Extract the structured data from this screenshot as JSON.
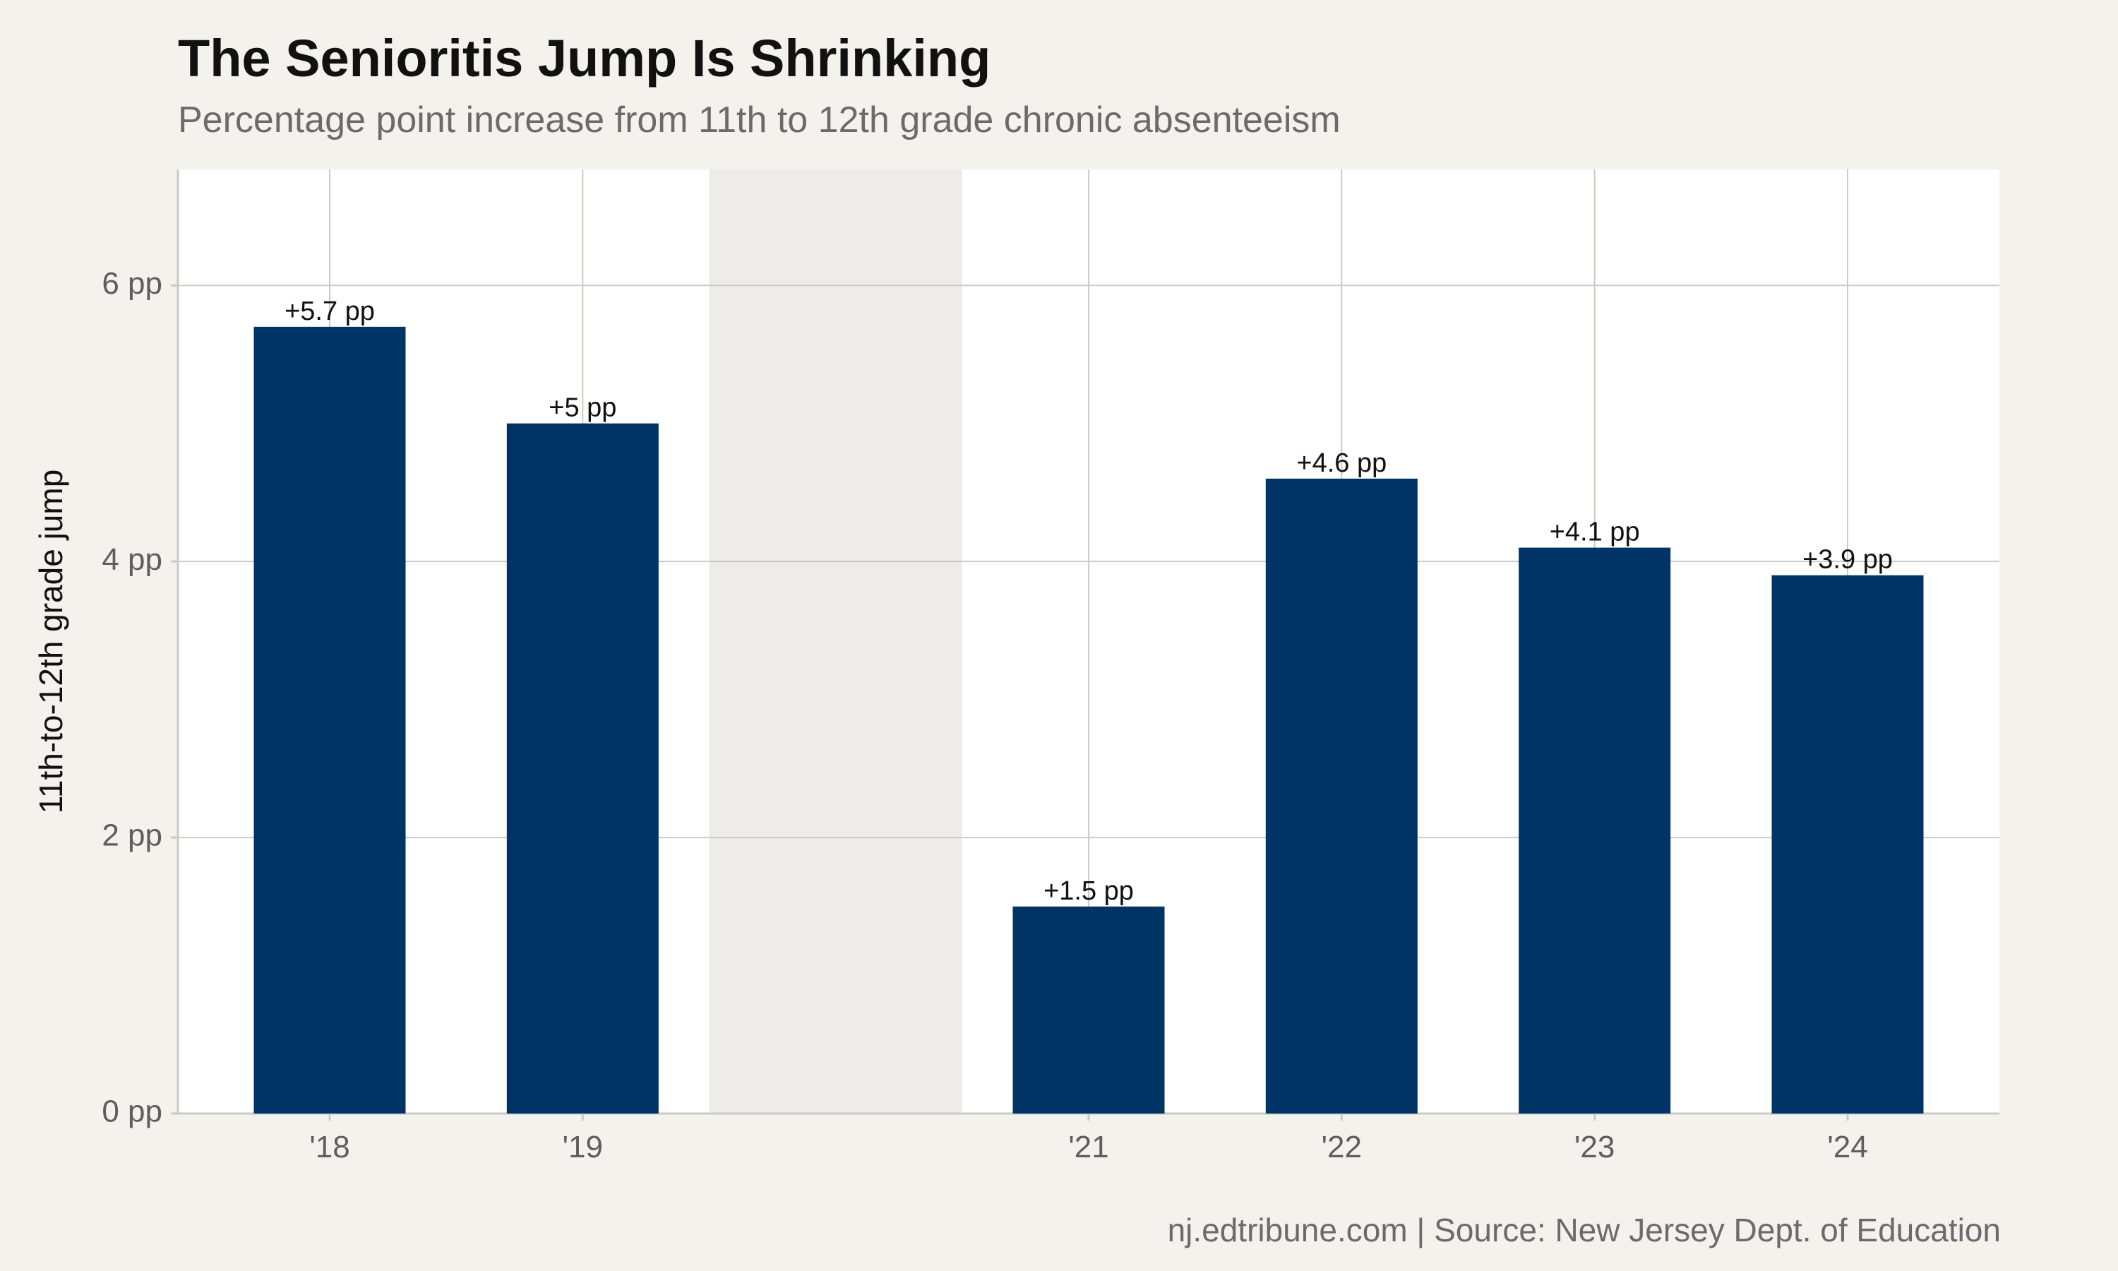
{
  "chart_data": {
    "type": "bar",
    "title": "The Senioritis Jump Is Shrinking",
    "subtitle": "Percentage point increase from 11th to 12th grade chronic absenteeism",
    "caption": "nj.edtribune.com | Source: New Jersey Dept. of Education",
    "xlabel": "",
    "ylabel": "11th-to-12th grade jump",
    "x": [
      2018,
      2019,
      2021,
      2022,
      2023,
      2024
    ],
    "categories": [
      "'18",
      "'19",
      "'21",
      "'22",
      "'23",
      "'24"
    ],
    "values": [
      5.7,
      5.0,
      1.5,
      4.6,
      4.1,
      3.9
    ],
    "value_labels": [
      "+5.7 pp",
      "+5 pp",
      "+1.5 pp",
      "+4.6 pp",
      "+4.1 pp",
      "+3.9 pp"
    ],
    "xlim": [
      2017.4,
      2024.6
    ],
    "ylim": [
      0,
      6.84
    ],
    "yticks": [
      0,
      2,
      4,
      6
    ],
    "ytick_labels": [
      "0 pp",
      "2 pp",
      "4 pp",
      "6 pp"
    ],
    "shaded_region": [
      2019.5,
      2020.5
    ],
    "grid": true,
    "colors": {
      "bar": "#003366",
      "panel": "#ffffff",
      "background": "#f4f2ed",
      "shade": "#eeece8",
      "grid": "#cbcac4"
    }
  }
}
